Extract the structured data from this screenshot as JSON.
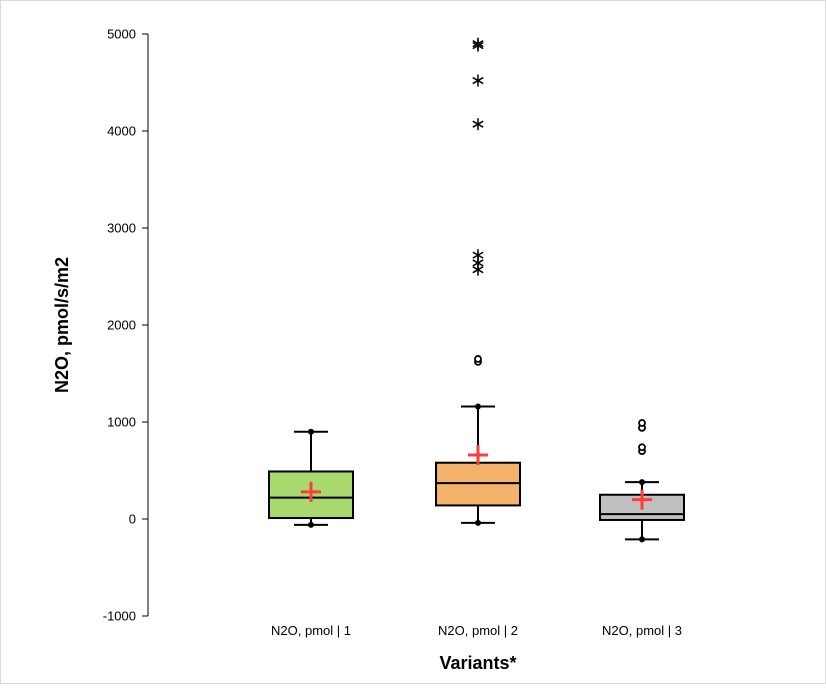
{
  "chart_data": {
    "type": "box",
    "title": "",
    "xlabel": "Variants*",
    "ylabel": "N2O, pmol/s/m2",
    "ylim": [
      -1000,
      5000
    ],
    "yticks": [
      -1000,
      0,
      1000,
      2000,
      3000,
      4000,
      5000
    ],
    "grid": false,
    "legend": "none",
    "categories": [
      "N2O, pmol | 1",
      "N2O, pmol | 2",
      "N2O, pmol | 3"
    ],
    "boxes": [
      {
        "category": "N2O, pmol | 1",
        "color": "#A9D86E",
        "whisker_low": -60,
        "q1": 10,
        "median": 220,
        "q3": 490,
        "whisker_high": 900,
        "mean": 280,
        "outliers_circle": [],
        "outliers_star": []
      },
      {
        "category": "N2O, pmol | 2",
        "color": "#F5B26B",
        "whisker_low": -40,
        "q1": 140,
        "median": 370,
        "q3": 580,
        "whisker_high": 1160,
        "mean": 660,
        "outliers_circle": [
          1620,
          1650
        ],
        "outliers_star": [
          2570,
          2640,
          2720,
          4070,
          4520,
          4880,
          4900
        ]
      },
      {
        "category": "N2O, pmol | 3",
        "color": "#BFBFBF",
        "whisker_low": -210,
        "q1": -10,
        "median": 50,
        "q3": 250,
        "whisker_high": 380,
        "mean": 200,
        "outliers_circle": [
          700,
          740,
          940,
          990
        ],
        "outliers_star": []
      }
    ]
  },
  "colors": {
    "mean_marker": "#FF3B3B",
    "stroke": "#000000",
    "outliers_circle_fill": "#ffffff"
  }
}
